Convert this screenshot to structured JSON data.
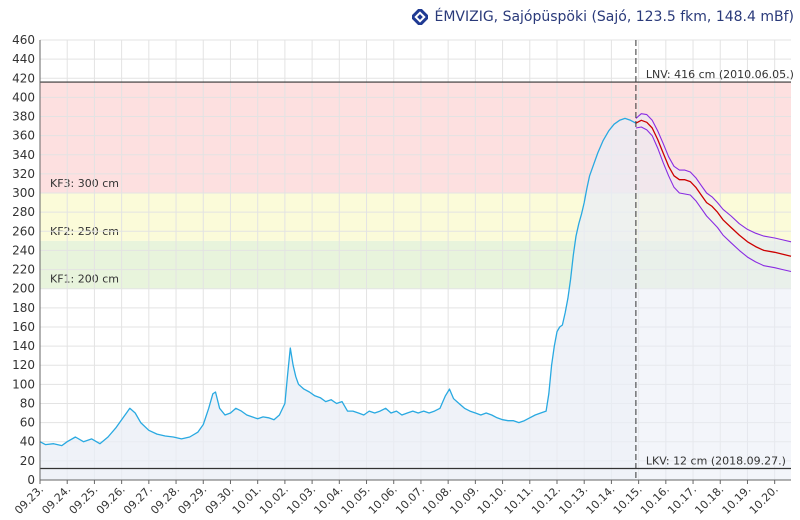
{
  "header": {
    "title": "ÉMVIZIG, Sajópüspöki (Sajó, 123.5 fkm, 148.4 mBf)",
    "logo_icon": "emvizig-logo-icon",
    "title_color": "#2a3a7a"
  },
  "chart_data": {
    "type": "line",
    "title": "ÉMVIZIG, Sajópüspöki (Sajó, 123.5 fkm, 148.4 mBf)",
    "xlabel": "",
    "ylabel": "",
    "ylim": [
      0,
      460
    ],
    "y_ticks": [
      0,
      20,
      40,
      60,
      80,
      100,
      120,
      140,
      160,
      180,
      200,
      220,
      240,
      260,
      280,
      300,
      320,
      340,
      360,
      380,
      400,
      420,
      440,
      460
    ],
    "x_range": [
      0,
      27.6
    ],
    "x_ticks": [
      {
        "pos": 0,
        "label": "09.23."
      },
      {
        "pos": 1,
        "label": "09.24."
      },
      {
        "pos": 2,
        "label": "09.25."
      },
      {
        "pos": 3,
        "label": "09.26."
      },
      {
        "pos": 4,
        "label": "09.27."
      },
      {
        "pos": 5,
        "label": "09.28."
      },
      {
        "pos": 6,
        "label": "09.29."
      },
      {
        "pos": 7,
        "label": "09.30."
      },
      {
        "pos": 8,
        "label": "10.01."
      },
      {
        "pos": 9,
        "label": "10.02."
      },
      {
        "pos": 10,
        "label": "10.03."
      },
      {
        "pos": 11,
        "label": "10.04."
      },
      {
        "pos": 12,
        "label": "10.05."
      },
      {
        "pos": 13,
        "label": "10.06."
      },
      {
        "pos": 14,
        "label": "10.07."
      },
      {
        "pos": 15,
        "label": "10.08."
      },
      {
        "pos": 16,
        "label": "10.09."
      },
      {
        "pos": 17,
        "label": "10.10."
      },
      {
        "pos": 18,
        "label": "10.11."
      },
      {
        "pos": 19,
        "label": "10.12."
      },
      {
        "pos": 20,
        "label": "10.13."
      },
      {
        "pos": 21,
        "label": "10.14."
      },
      {
        "pos": 22,
        "label": "10.15."
      },
      {
        "pos": 23,
        "label": "10.16."
      },
      {
        "pos": 24,
        "label": "10.17."
      },
      {
        "pos": 25,
        "label": "10.18."
      },
      {
        "pos": 26,
        "label": "10.19."
      },
      {
        "pos": 27,
        "label": "10.20."
      }
    ],
    "grid": true,
    "bands": [
      {
        "name": "KF1",
        "label": "KF1: 200 cm",
        "from": 200,
        "to": 250,
        "color": "#e8f4dc"
      },
      {
        "name": "KF2",
        "label": "KF2: 250 cm",
        "from": 250,
        "to": 300,
        "color": "#fbfbd9"
      },
      {
        "name": "KF3",
        "label": "KF3: 300 cm",
        "from": 300,
        "to": 416,
        "color": "#fde0e0"
      }
    ],
    "reference_lines": [
      {
        "name": "LNV",
        "label": "LNV: 416 cm (2010.06.05.)",
        "value": 416,
        "color": "#333333"
      },
      {
        "name": "LKV",
        "label": "LKV: 12 cm (2018.09.27.)",
        "value": 12,
        "color": "#333333"
      }
    ],
    "now_marker": 21.9,
    "observed": {
      "color": "#29a9e1",
      "points": [
        [
          0,
          40
        ],
        [
          0.2,
          37
        ],
        [
          0.5,
          38
        ],
        [
          0.8,
          36
        ],
        [
          1,
          40
        ],
        [
          1.3,
          45
        ],
        [
          1.6,
          40
        ],
        [
          1.9,
          43
        ],
        [
          2.2,
          38
        ],
        [
          2.5,
          45
        ],
        [
          2.8,
          55
        ],
        [
          3.1,
          67
        ],
        [
          3.3,
          75
        ],
        [
          3.5,
          70
        ],
        [
          3.7,
          60
        ],
        [
          4,
          52
        ],
        [
          4.3,
          48
        ],
        [
          4.6,
          46
        ],
        [
          4.9,
          45
        ],
        [
          5.2,
          43
        ],
        [
          5.5,
          45
        ],
        [
          5.8,
          50
        ],
        [
          6,
          58
        ],
        [
          6.2,
          75
        ],
        [
          6.35,
          90
        ],
        [
          6.45,
          92
        ],
        [
          6.6,
          75
        ],
        [
          6.8,
          68
        ],
        [
          7,
          70
        ],
        [
          7.2,
          75
        ],
        [
          7.4,
          72
        ],
        [
          7.6,
          68
        ],
        [
          7.8,
          66
        ],
        [
          8,
          64
        ],
        [
          8.2,
          66
        ],
        [
          8.4,
          65
        ],
        [
          8.6,
          63
        ],
        [
          8.8,
          68
        ],
        [
          9,
          80
        ],
        [
          9.1,
          110
        ],
        [
          9.2,
          138
        ],
        [
          9.3,
          120
        ],
        [
          9.4,
          108
        ],
        [
          9.5,
          100
        ],
        [
          9.7,
          95
        ],
        [
          9.9,
          92
        ],
        [
          10.1,
          88
        ],
        [
          10.3,
          86
        ],
        [
          10.5,
          82
        ],
        [
          10.7,
          84
        ],
        [
          10.9,
          80
        ],
        [
          11.1,
          82
        ],
        [
          11.3,
          72
        ],
        [
          11.5,
          72
        ],
        [
          11.7,
          70
        ],
        [
          11.9,
          68
        ],
        [
          12.1,
          72
        ],
        [
          12.3,
          70
        ],
        [
          12.5,
          72
        ],
        [
          12.7,
          75
        ],
        [
          12.9,
          70
        ],
        [
          13.1,
          72
        ],
        [
          13.3,
          68
        ],
        [
          13.5,
          70
        ],
        [
          13.7,
          72
        ],
        [
          13.9,
          70
        ],
        [
          14.1,
          72
        ],
        [
          14.3,
          70
        ],
        [
          14.5,
          72
        ],
        [
          14.7,
          75
        ],
        [
          14.9,
          88
        ],
        [
          15.05,
          95
        ],
        [
          15.2,
          85
        ],
        [
          15.4,
          80
        ],
        [
          15.6,
          75
        ],
        [
          15.8,
          72
        ],
        [
          16,
          70
        ],
        [
          16.2,
          68
        ],
        [
          16.4,
          70
        ],
        [
          16.6,
          68
        ],
        [
          16.8,
          65
        ],
        [
          17,
          63
        ],
        [
          17.2,
          62
        ],
        [
          17.4,
          62
        ],
        [
          17.6,
          60
        ],
        [
          17.8,
          62
        ],
        [
          18,
          65
        ],
        [
          18.2,
          68
        ],
        [
          18.4,
          70
        ],
        [
          18.6,
          72
        ],
        [
          18.7,
          90
        ],
        [
          18.8,
          120
        ],
        [
          18.9,
          140
        ],
        [
          19,
          155
        ],
        [
          19.1,
          160
        ],
        [
          19.2,
          162
        ],
        [
          19.3,
          175
        ],
        [
          19.4,
          190
        ],
        [
          19.5,
          210
        ],
        [
          19.6,
          235
        ],
        [
          19.7,
          255
        ],
        [
          19.8,
          268
        ],
        [
          19.9,
          278
        ],
        [
          20,
          290
        ],
        [
          20.1,
          305
        ],
        [
          20.2,
          318
        ],
        [
          20.35,
          330
        ],
        [
          20.5,
          342
        ],
        [
          20.7,
          355
        ],
        [
          20.9,
          365
        ],
        [
          21.1,
          372
        ],
        [
          21.3,
          376
        ],
        [
          21.5,
          378
        ],
        [
          21.7,
          376
        ],
        [
          21.9,
          373
        ]
      ]
    },
    "forecast": {
      "color": "#cc0000",
      "band_color": "#8a2be2",
      "points": [
        [
          21.9,
          373
        ],
        [
          22.1,
          376
        ],
        [
          22.3,
          374
        ],
        [
          22.5,
          368
        ],
        [
          22.7,
          356
        ],
        [
          22.9,
          342
        ],
        [
          23.1,
          328
        ],
        [
          23.3,
          318
        ],
        [
          23.5,
          314
        ],
        [
          23.7,
          314
        ],
        [
          23.9,
          312
        ],
        [
          24.1,
          306
        ],
        [
          24.3,
          298
        ],
        [
          24.5,
          290
        ],
        [
          24.7,
          286
        ],
        [
          24.9,
          280
        ],
        [
          25.1,
          272
        ],
        [
          25.4,
          264
        ],
        [
          25.7,
          256
        ],
        [
          26,
          249
        ],
        [
          26.3,
          244
        ],
        [
          26.6,
          240
        ],
        [
          27,
          238
        ],
        [
          27.3,
          236
        ],
        [
          27.6,
          234
        ]
      ],
      "upper": [
        [
          21.9,
          378
        ],
        [
          22.1,
          383
        ],
        [
          22.3,
          382
        ],
        [
          22.5,
          376
        ],
        [
          22.7,
          365
        ],
        [
          22.9,
          352
        ],
        [
          23.1,
          338
        ],
        [
          23.3,
          328
        ],
        [
          23.5,
          324
        ],
        [
          23.7,
          324
        ],
        [
          23.9,
          322
        ],
        [
          24.1,
          316
        ],
        [
          24.3,
          308
        ],
        [
          24.5,
          300
        ],
        [
          24.7,
          296
        ],
        [
          24.9,
          290
        ],
        [
          25.1,
          283
        ],
        [
          25.4,
          276
        ],
        [
          25.7,
          268
        ],
        [
          26,
          262
        ],
        [
          26.3,
          258
        ],
        [
          26.6,
          255
        ],
        [
          27,
          253
        ],
        [
          27.3,
          251
        ],
        [
          27.6,
          249
        ]
      ],
      "lower": [
        [
          21.9,
          368
        ],
        [
          22.1,
          369
        ],
        [
          22.3,
          366
        ],
        [
          22.5,
          360
        ],
        [
          22.7,
          347
        ],
        [
          22.9,
          332
        ],
        [
          23.1,
          318
        ],
        [
          23.3,
          306
        ],
        [
          23.5,
          300
        ],
        [
          23.7,
          299
        ],
        [
          23.9,
          298
        ],
        [
          24.1,
          292
        ],
        [
          24.3,
          284
        ],
        [
          24.5,
          276
        ],
        [
          24.7,
          270
        ],
        [
          24.9,
          264
        ],
        [
          25.1,
          256
        ],
        [
          25.4,
          248
        ],
        [
          25.7,
          240
        ],
        [
          26,
          233
        ],
        [
          26.3,
          228
        ],
        [
          26.6,
          224
        ],
        [
          27,
          222
        ],
        [
          27.3,
          220
        ],
        [
          27.6,
          218
        ]
      ]
    }
  }
}
